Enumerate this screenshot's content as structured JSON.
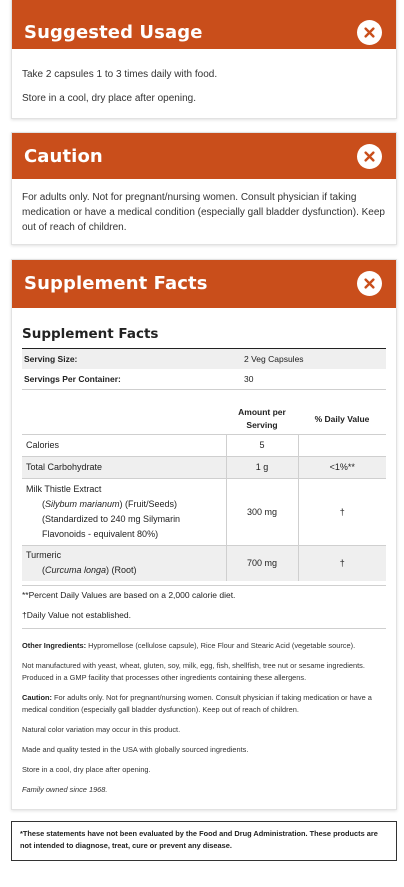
{
  "usage": {
    "title": "Suggested Usage",
    "lines": [
      "Take 2 capsules 1 to 3 times daily with food.",
      "Store in a cool, dry place after opening."
    ]
  },
  "caution": {
    "title": "Caution",
    "text": "For adults only. Not for pregnant/nursing women. Consult physician if taking medication or have a medical condition (especially gall bladder dysfunction). Keep out of reach of children."
  },
  "facts": {
    "header_title": "Supplement Facts",
    "panel_title": "Supplement Facts",
    "serving_size_label": "Serving Size:",
    "serving_size_value": "2 Veg Capsules",
    "servings_label": "Servings Per Container:",
    "servings_value": "30",
    "col_amount": "Amount per Serving",
    "col_dv": "% Daily Value",
    "rows": [
      {
        "name": "Calories",
        "amount": "5",
        "dv": ""
      },
      {
        "name": "Total Carbohydrate",
        "amount": "1 g",
        "dv": "<1%**"
      },
      {
        "name": "Milk Thistle Extract",
        "sub_italic": "Silybum marianum",
        "sub_rest": " (Fruit/Seeds)",
        "sub2": "(Standardized to 240 mg Silymarin Flavonoids - equivalent 80%)",
        "amount": "300 mg",
        "dv": "†"
      },
      {
        "name": "Turmeric",
        "sub_italic": "Curcuma longa",
        "sub_rest": " (Root)",
        "amount": "700 mg",
        "dv": "†"
      }
    ],
    "footnote_1": "**Percent Daily Values are based on a 2,000 calorie diet.",
    "footnote_2": "†Daily Value not established.",
    "other_ingredients_label": "Other Ingredients:",
    "other_ingredients": " Hypromellose (cellulose capsule), Rice Flour and Stearic Acid (vegetable source).",
    "allergen_note": "Not manufactured with yeast, wheat, gluten, soy, milk, egg, fish, shellfish, tree nut or sesame ingredients. Produced in a GMP facility that processes other ingredients containing these allergens.",
    "caution_label": "Caution:",
    "caution_text": " For adults only. Not for pregnant/nursing women. Consult physician if taking medication or have a medical condition (especially gall bladder dysfunction). Keep out of reach of children.",
    "color_note": "Natural color variation may occur in this product.",
    "made_note": "Made and quality tested in the USA with globally sourced ingredients.",
    "store_note": "Store in a cool, dry place after opening.",
    "family_note": "Family owned since 1968."
  },
  "disclaimer": "*These statements have not been evaluated by the Food and Drug Administration. These products are not intended to diagnose, treat, cure or prevent any disease.",
  "colors": {
    "accent": "#c94e1b"
  }
}
